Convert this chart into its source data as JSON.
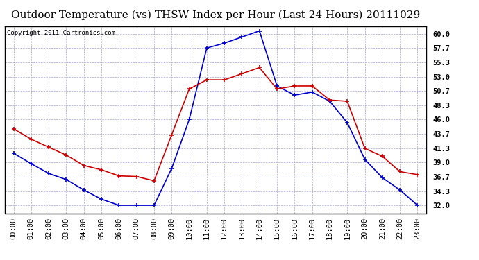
{
  "title": "Outdoor Temperature (vs) THSW Index per Hour (Last 24 Hours) 20111029",
  "copyright_text": "Copyright 2011 Cartronics.com",
  "hours": [
    "00:00",
    "01:00",
    "02:00",
    "03:00",
    "04:00",
    "05:00",
    "06:00",
    "07:00",
    "08:00",
    "09:00",
    "10:00",
    "11:00",
    "12:00",
    "13:00",
    "14:00",
    "15:00",
    "16:00",
    "17:00",
    "18:00",
    "19:00",
    "20:00",
    "21:00",
    "22:00",
    "23:00"
  ],
  "temp_red": [
    44.5,
    42.8,
    41.5,
    40.2,
    38.5,
    37.8,
    36.8,
    36.7,
    36.0,
    43.5,
    51.0,
    52.5,
    52.5,
    53.5,
    54.5,
    51.0,
    51.5,
    51.5,
    49.2,
    49.0,
    41.3,
    40.0,
    37.5,
    37.0
  ],
  "thsw_blue": [
    40.5,
    38.8,
    37.2,
    36.2,
    34.5,
    33.0,
    32.0,
    32.0,
    32.0,
    38.0,
    46.0,
    57.7,
    58.5,
    59.5,
    60.5,
    51.5,
    50.0,
    50.5,
    49.0,
    45.5,
    39.5,
    36.5,
    34.5,
    32.0
  ],
  "ylim_min": 30.7,
  "ylim_max": 61.3,
  "yticks": [
    32.0,
    34.3,
    36.7,
    39.0,
    41.3,
    43.7,
    46.0,
    48.3,
    50.7,
    53.0,
    55.3,
    57.7,
    60.0
  ],
  "bg_color": "#ffffff",
  "grid_color": "#aaaacc",
  "red_color": "#cc0000",
  "blue_color": "#0000cc",
  "title_fontsize": 11,
  "tick_fontsize": 7.5,
  "copyright_fontsize": 6.5
}
